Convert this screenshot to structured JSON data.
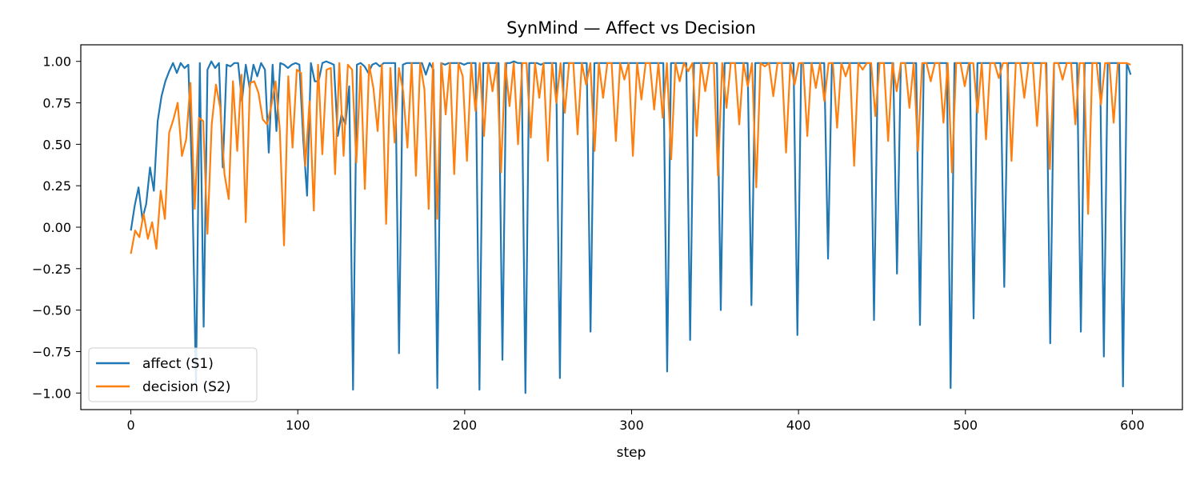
{
  "chart_data": {
    "type": "line",
    "title": "SynMind — Affect vs Decision",
    "xlabel": "step",
    "ylabel": "",
    "xlim": [
      -30,
      630
    ],
    "ylim": [
      -1.1,
      1.1
    ],
    "x_ticks": [
      0,
      100,
      200,
      300,
      400,
      500,
      600
    ],
    "y_ticks": [
      1.0,
      0.75,
      0.5,
      0.25,
      0.0,
      -0.25,
      -0.5,
      -0.75,
      -1.0
    ],
    "y_tick_labels": [
      "1.00",
      "0.75",
      "0.50",
      "0.25",
      "0.00",
      "−0.25",
      "−0.50",
      "−0.75",
      "−1.00"
    ],
    "grid": false,
    "legend_position": "lower-left",
    "x": {
      "start": 0,
      "end": 599,
      "step": 1,
      "count": 600
    },
    "series": [
      {
        "name": "affect (S1)",
        "color": "#1f77b4",
        "values": [
          -0.02,
          0.13,
          0.24,
          0.05,
          0.14,
          0.36,
          0.22,
          0.64,
          0.79,
          0.88,
          0.94,
          0.99,
          0.93,
          0.99,
          0.96,
          0.98,
          0.29,
          -0.95,
          0.99,
          -0.6,
          0.95,
          1.0,
          0.96,
          0.99,
          0.36,
          0.98,
          0.97,
          0.99,
          0.99,
          0.76,
          0.98,
          0.84,
          0.98,
          0.91,
          0.99,
          0.95,
          0.45,
          0.98,
          0.58,
          0.99,
          0.98,
          0.96,
          0.98,
          0.99,
          0.98,
          0.53,
          0.19,
          0.99,
          0.88,
          0.88,
          0.99,
          1.0,
          0.99,
          0.98,
          0.55,
          0.68,
          0.62,
          0.85,
          -0.98,
          0.98,
          0.99,
          0.97,
          0.93,
          0.98,
          0.99,
          0.97,
          0.99,
          0.99,
          0.99,
          0.99,
          -0.76,
          0.98,
          0.99,
          0.99,
          0.99,
          0.99,
          0.99,
          0.92,
          0.99,
          0.95,
          -0.97,
          0.99,
          0.98,
          0.99,
          0.99,
          0.99,
          0.99,
          0.98,
          0.99,
          0.99,
          0.99,
          -0.98,
          0.99,
          0.99,
          0.99,
          0.99,
          0.99,
          -0.8,
          0.99,
          0.99,
          1.0,
          0.99,
          0.99,
          -1.0,
          0.99,
          0.99,
          0.99,
          0.98,
          0.99,
          0.99,
          0.99,
          0.99,
          -0.91,
          0.99,
          0.99,
          0.99,
          0.99,
          0.99,
          0.99,
          0.99,
          -0.63,
          0.99,
          0.99,
          0.99,
          0.99,
          0.99,
          0.99,
          0.99,
          0.99,
          0.99,
          0.99,
          0.99,
          0.99,
          0.99,
          0.99,
          0.99,
          0.99,
          0.99,
          0.99,
          0.99,
          -0.87,
          0.99,
          0.99,
          0.99,
          0.99,
          0.99,
          -0.68,
          0.99,
          0.99,
          0.99,
          0.99,
          0.99,
          0.99,
          0.99,
          -0.5,
          0.99,
          0.99,
          0.99,
          0.99,
          0.99,
          0.99,
          0.99,
          -0.47,
          0.99,
          0.99,
          0.99,
          0.99,
          0.99,
          0.99,
          0.99,
          0.99,
          0.99,
          0.99,
          0.99,
          -0.65,
          0.99,
          0.99,
          0.99,
          0.99,
          0.99,
          0.99,
          0.99,
          -0.19,
          0.99,
          0.99,
          0.99,
          0.99,
          0.99,
          0.99,
          0.99,
          0.99,
          0.99,
          0.99,
          0.99,
          -0.56,
          0.99,
          0.99,
          0.99,
          0.99,
          0.99,
          -0.28,
          0.99,
          0.99,
          0.99,
          0.99,
          0.99,
          -0.59,
          0.99,
          0.99,
          0.99,
          0.99,
          0.99,
          0.99,
          0.99,
          -0.97,
          0.99,
          0.99,
          0.99,
          0.99,
          0.99,
          -0.55,
          0.99,
          0.99,
          0.99,
          0.99,
          0.99,
          0.99,
          0.99,
          -0.36,
          0.99,
          0.99,
          0.99,
          0.99,
          0.99,
          0.99,
          0.99,
          0.99,
          0.99,
          0.99,
          0.99,
          -0.7,
          0.99,
          0.99,
          0.99,
          0.99,
          0.99,
          0.99,
          0.99,
          -0.63,
          0.99,
          0.99,
          0.99,
          0.99,
          0.99,
          -0.78,
          0.99,
          0.99,
          0.99,
          0.99,
          -0.96,
          0.99,
          0.92
        ]
      },
      {
        "name": "decision (S2)",
        "color": "#ff7f0e",
        "values": [
          -0.16,
          -0.02,
          -0.06,
          0.08,
          -0.07,
          0.03,
          -0.13,
          0.22,
          0.05,
          0.57,
          0.65,
          0.75,
          0.43,
          0.53,
          0.87,
          0.11,
          0.66,
          0.64,
          -0.04,
          0.62,
          0.86,
          0.72,
          0.32,
          0.17,
          0.88,
          0.46,
          0.92,
          0.03,
          0.87,
          0.88,
          0.81,
          0.65,
          0.62,
          0.73,
          0.88,
          0.59,
          -0.11,
          0.91,
          0.48,
          0.95,
          0.93,
          0.37,
          0.76,
          0.1,
          0.98,
          0.44,
          0.95,
          0.96,
          0.32,
          0.99,
          0.43,
          0.98,
          0.95,
          0.39,
          0.97,
          0.23,
          0.98,
          0.84,
          0.58,
          0.98,
          0.02,
          0.96,
          0.51,
          0.96,
          0.82,
          0.48,
          0.99,
          0.31,
          0.99,
          0.83,
          0.11,
          0.99,
          0.05,
          0.99,
          0.68,
          0.99,
          0.32,
          0.99,
          0.91,
          0.4,
          0.99,
          0.7,
          0.99,
          0.55,
          0.99,
          0.82,
          0.99,
          0.33,
          0.99,
          0.73,
          0.99,
          0.5,
          0.99,
          0.99,
          0.54,
          0.99,
          0.78,
          0.99,
          0.4,
          0.99,
          0.75,
          0.99,
          0.69,
          0.99,
          0.99,
          0.56,
          0.99,
          0.86,
          0.99,
          0.46,
          0.99,
          0.78,
          0.99,
          0.99,
          0.52,
          0.99,
          0.89,
          0.99,
          0.43,
          0.99,
          0.77,
          0.99,
          0.99,
          0.71,
          0.99,
          0.66,
          0.99,
          0.41,
          0.99,
          0.88,
          0.99,
          0.94,
          0.99,
          0.55,
          0.99,
          0.82,
          0.99,
          0.99,
          0.31,
          0.99,
          0.72,
          0.99,
          0.99,
          0.62,
          0.99,
          0.85,
          0.99,
          0.24,
          0.99,
          0.97,
          0.99,
          0.79,
          0.99,
          0.99,
          0.45,
          0.99,
          0.86,
          0.99,
          0.99,
          0.55,
          0.99,
          0.84,
          0.99,
          0.76,
          0.99,
          0.99,
          0.6,
          0.99,
          0.91,
          0.99,
          0.37,
          0.99,
          0.95,
          0.99,
          0.99,
          0.67,
          0.99,
          0.99,
          0.52,
          0.99,
          0.82,
          0.99,
          0.99,
          0.72,
          0.99,
          0.46,
          0.99,
          0.99,
          0.88,
          0.99,
          0.99,
          0.63,
          0.99,
          0.33,
          0.99,
          0.99,
          0.85,
          0.99,
          0.99,
          0.69,
          0.99,
          0.53,
          0.99,
          0.99,
          0.9,
          0.99,
          0.99,
          0.4,
          0.99,
          0.99,
          0.78,
          0.99,
          0.99,
          0.61,
          0.99,
          0.99,
          0.35,
          0.99,
          0.99,
          0.89,
          0.99,
          0.99,
          0.62,
          0.99,
          0.99,
          0.08,
          0.99,
          0.99,
          0.74,
          0.99,
          0.99,
          0.63,
          0.99,
          0.99,
          0.99,
          0.98
        ]
      }
    ]
  }
}
